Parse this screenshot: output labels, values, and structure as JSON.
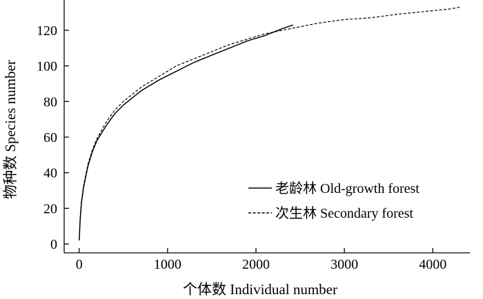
{
  "chart_data": {
    "type": "line",
    "xlabel": "个体数 Individual number",
    "ylabel": "物种数 Species number",
    "xlim": [
      -170,
      4420
    ],
    "ylim": [
      -5,
      137
    ],
    "xticks": [
      0,
      1000,
      2000,
      3000,
      4000
    ],
    "yticks": [
      0,
      20,
      40,
      60,
      80,
      100,
      120
    ],
    "grid": false,
    "legend_position": "bottom-right",
    "series": [
      {
        "name": "老龄林 Old-growth forest",
        "style": "solid",
        "color": "#000000",
        "x": [
          0,
          10,
          25,
          50,
          100,
          150,
          200,
          300,
          400,
          500,
          700,
          900,
          1100,
          1300,
          1500,
          1700,
          1900,
          2100,
          2300,
          2420
        ],
        "y": [
          2,
          13,
          23,
          32,
          44,
          52,
          58,
          66,
          73,
          78,
          86,
          92,
          97,
          102,
          106,
          110,
          114,
          117,
          121,
          123
        ]
      },
      {
        "name": "次生林 Secondary forest",
        "style": "dashed",
        "color": "#000000",
        "x": [
          0,
          10,
          25,
          50,
          100,
          150,
          200,
          300,
          400,
          500,
          700,
          900,
          1100,
          1300,
          1500,
          1700,
          1900,
          2100,
          2300,
          2500,
          2700,
          3000,
          3300,
          3600,
          3900,
          4200,
          4310
        ],
        "y": [
          2,
          14,
          24,
          33,
          45,
          53,
          59,
          68,
          75,
          80,
          88,
          94,
          100,
          104,
          108,
          112,
          115,
          118,
          120,
          122,
          124,
          126,
          127,
          129,
          130.5,
          132,
          133
        ]
      }
    ]
  }
}
